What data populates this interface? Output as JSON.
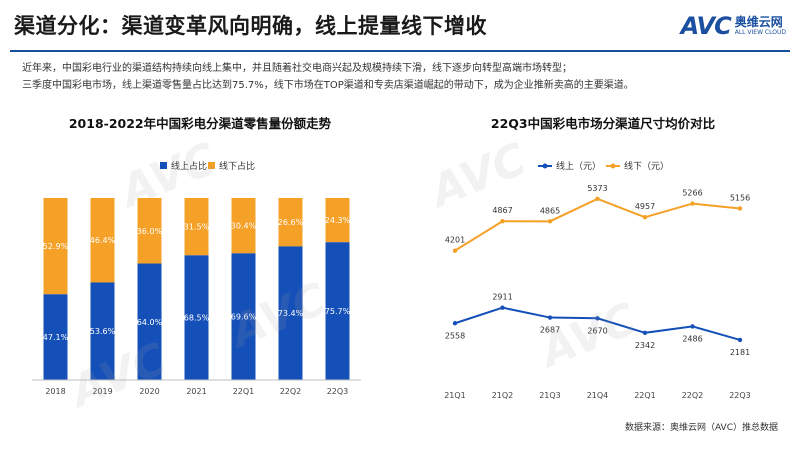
{
  "header": {
    "title": "渠道分化：渠道变革风向明确，线上提量线下增收",
    "brand_logo": "AVC",
    "brand_name": "奥维云网",
    "brand_tagline": "ALL VIEW CLOUD"
  },
  "intro": {
    "line1": "近年来，中国彩电行业的渠道结构持续向线上集中，并且随着社交电商兴起及规模持续下滑，线下逐步向转型高端市场转型；",
    "line2": "三季度中国彩电市场，线上渠道零售量占比达到75.7%，线下市场在TOP渠道和专卖店渠道崛起的带动下，成为企业推新卖高的主要渠道。"
  },
  "source": "数据来源：奥维云网（AVC）推总数据",
  "watermark": "AVC",
  "colors": {
    "online": "#1550b8",
    "offline": "#f5a027",
    "title_rule": "#1b4fa0"
  },
  "chart_data": [
    {
      "type": "bar",
      "stacked": true,
      "title": "2018-2022年中国彩电分渠道零售量份额走势",
      "categories": [
        "2018",
        "2019",
        "2020",
        "2021",
        "22Q1",
        "22Q2",
        "22Q3"
      ],
      "series": [
        {
          "name": "线上占比",
          "values": [
            47.1,
            53.6,
            64.0,
            68.5,
            69.6,
            73.4,
            75.7
          ],
          "labels": [
            "47.1%",
            "53.6%",
            "64.0%",
            "68.5%",
            "69.6%",
            "73.4%",
            "75.7%"
          ]
        },
        {
          "name": "线下占比",
          "values": [
            52.9,
            46.4,
            36.0,
            31.5,
            30.4,
            26.6,
            24.3
          ],
          "labels": [
            "52.9%",
            "46.4%",
            "36.0%",
            "31.5%",
            "30.4%",
            "26.6%",
            "24.3%"
          ]
        }
      ],
      "ylim": [
        0,
        100
      ],
      "legend": "top-left"
    },
    {
      "type": "line",
      "title": "22Q3中国彩电市场分渠道尺寸均价对比",
      "categories": [
        "21Q1",
        "21Q2",
        "21Q3",
        "21Q4",
        "22Q1",
        "22Q2",
        "22Q3"
      ],
      "series": [
        {
          "name": "线上（元）",
          "values": [
            2558,
            2911,
            2687,
            2670,
            2342,
            2486,
            2181
          ]
        },
        {
          "name": "线下（元）",
          "values": [
            4201,
            4867,
            4865,
            5373,
            4957,
            5266,
            5156
          ]
        }
      ],
      "ylim": [
        1500,
        5800
      ],
      "legend": "top"
    }
  ]
}
